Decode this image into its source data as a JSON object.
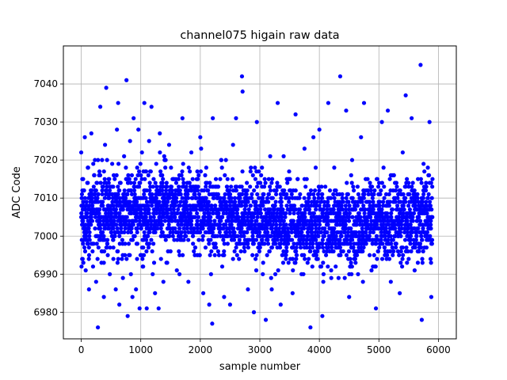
{
  "chart_data": {
    "type": "scatter",
    "title": "channel075 higain raw data",
    "xlabel": "sample number",
    "ylabel": "ADC Code",
    "xlim": [
      -300,
      6300
    ],
    "ylim": [
      6973,
      7050
    ],
    "x_ticks": [
      0,
      1000,
      2000,
      3000,
      4000,
      5000,
      6000
    ],
    "y_ticks": [
      6980,
      6990,
      7000,
      7010,
      7020,
      7030,
      7040
    ],
    "x_tick_labels": [
      "0",
      "1000",
      "2000",
      "3000",
      "4000",
      "5000",
      "6000"
    ],
    "y_tick_labels": [
      "6980",
      "6990",
      "7000",
      "7010",
      "7020",
      "7030",
      "7040"
    ],
    "grid": true,
    "legend": "none",
    "marker_color": "#0000ff",
    "series": [
      {
        "points": [
          [
            0,
            7022
          ],
          [
            5,
            6992
          ],
          [
            10,
            7008
          ],
          [
            18,
            7015
          ],
          [
            30,
            6998
          ],
          [
            45,
            7012
          ],
          [
            60,
            7026
          ],
          [
            75,
            6991
          ],
          [
            90,
            7005
          ],
          [
            110,
            7018
          ],
          [
            130,
            6986
          ],
          [
            150,
            7010
          ],
          [
            170,
            7027
          ],
          [
            190,
            6996
          ],
          [
            210,
            7013
          ],
          [
            230,
            7020
          ],
          [
            250,
            6988
          ],
          [
            270,
            7004
          ],
          [
            280,
            6976
          ],
          [
            300,
            7016
          ],
          [
            320,
            7034
          ],
          [
            340,
            6993
          ],
          [
            360,
            7009
          ],
          [
            380,
            6984
          ],
          [
            400,
            7024
          ],
          [
            420,
            7039
          ],
          [
            440,
            6999
          ],
          [
            460,
            7015
          ],
          [
            480,
            6990
          ],
          [
            500,
            7006
          ],
          [
            520,
            7019
          ],
          [
            540,
            6994
          ],
          [
            560,
            7011
          ],
          [
            580,
            6986
          ],
          [
            600,
            7028
          ],
          [
            620,
            7035
          ],
          [
            640,
            6982
          ],
          [
            660,
            7014
          ],
          [
            680,
            7003
          ],
          [
            700,
            6989
          ],
          [
            720,
            7021
          ],
          [
            740,
            7009
          ],
          [
            760,
            7041
          ],
          [
            780,
            6979
          ],
          [
            800,
            6995
          ],
          [
            820,
            7025
          ],
          [
            840,
            7012
          ],
          [
            860,
            6984
          ],
          [
            880,
            7031
          ],
          [
            900,
            7000
          ],
          [
            920,
            6986
          ],
          [
            940,
            7018
          ],
          [
            960,
            7028
          ],
          [
            980,
            6981
          ],
          [
            1000,
            7006
          ],
          [
            1020,
            7022
          ],
          [
            1040,
            6992
          ],
          [
            1060,
            7035
          ],
          [
            1080,
            7010
          ],
          [
            1100,
            6981
          ],
          [
            1120,
            6998
          ],
          [
            1140,
            7025
          ],
          [
            1160,
            7013
          ],
          [
            1180,
            7034
          ],
          [
            1200,
            6990
          ],
          [
            1220,
            7007
          ],
          [
            1240,
            6985
          ],
          [
            1260,
            7019
          ],
          [
            1280,
            7002
          ],
          [
            1300,
            6981
          ],
          [
            1320,
            7027
          ],
          [
            1340,
            6994
          ],
          [
            1360,
            7012
          ],
          [
            1380,
            6988
          ],
          [
            1400,
            7020
          ],
          [
            1450,
            7005
          ],
          [
            1500,
            6996
          ],
          [
            1550,
            7015
          ],
          [
            1600,
            7009
          ],
          [
            1650,
            6990
          ],
          [
            1700,
            7031
          ],
          [
            1750,
            7000
          ],
          [
            1800,
            6988
          ],
          [
            1850,
            7022
          ],
          [
            1900,
            7012
          ],
          [
            1950,
            6995
          ],
          [
            2000,
            7026
          ],
          [
            2050,
            6985
          ],
          [
            2100,
            7018
          ],
          [
            2150,
            6982
          ],
          [
            2180,
            6990
          ],
          [
            2200,
            6977
          ],
          [
            2210,
            7031
          ],
          [
            2250,
            7008
          ],
          [
            2300,
            6996
          ],
          [
            2350,
            7020
          ],
          [
            2400,
            6984
          ],
          [
            2450,
            7013
          ],
          [
            2500,
            6982
          ],
          [
            2550,
            7024
          ],
          [
            2600,
            7031
          ],
          [
            2650,
            6994
          ],
          [
            2700,
            7042
          ],
          [
            2710,
            7038
          ],
          [
            2750,
            7010
          ],
          [
            2800,
            6986
          ],
          [
            2850,
            7018
          ],
          [
            2900,
            6980
          ],
          [
            2950,
            7030
          ],
          [
            3000,
            7002
          ],
          [
            3050,
            6990
          ],
          [
            3100,
            6978
          ],
          [
            3150,
            7015
          ],
          [
            3200,
            6986
          ],
          [
            3250,
            7008
          ],
          [
            3300,
            7035
          ],
          [
            3350,
            6982
          ],
          [
            3400,
            7021
          ],
          [
            3450,
            6996
          ],
          [
            3500,
            7012
          ],
          [
            3550,
            6985
          ],
          [
            3600,
            7032
          ],
          [
            3650,
            7000
          ],
          [
            3700,
            6990
          ],
          [
            3750,
            7023
          ],
          [
            3800,
            7009
          ],
          [
            3850,
            6976
          ],
          [
            3900,
            7026
          ],
          [
            3950,
            6995
          ],
          [
            4000,
            7028
          ],
          [
            4050,
            6979
          ],
          [
            4100,
            7013
          ],
          [
            4150,
            7035
          ],
          [
            4200,
            6989
          ],
          [
            4250,
            7018
          ],
          [
            4300,
            7004
          ],
          [
            4350,
            7042
          ],
          [
            4400,
            6996
          ],
          [
            4450,
            7033
          ],
          [
            4500,
            6984
          ],
          [
            4550,
            7020
          ],
          [
            4600,
            7009
          ],
          [
            4650,
            6990
          ],
          [
            4700,
            7026
          ],
          [
            4750,
            7035
          ],
          [
            4800,
            6999
          ],
          [
            4850,
            7014
          ],
          [
            4900,
            6992
          ],
          [
            4950,
            6981
          ],
          [
            5000,
            7007
          ],
          [
            5050,
            7030
          ],
          [
            5100,
            6995
          ],
          [
            5150,
            7033
          ],
          [
            5200,
            6988
          ],
          [
            5250,
            7016
          ],
          [
            5300,
            7001
          ],
          [
            5350,
            6985
          ],
          [
            5400,
            7022
          ],
          [
            5450,
            7037
          ],
          [
            5500,
            6994
          ],
          [
            5550,
            7031
          ],
          [
            5600,
            6991
          ],
          [
            5650,
            7010
          ],
          [
            5700,
            7045
          ],
          [
            5720,
            6978
          ],
          [
            5750,
            7019
          ],
          [
            5800,
            7004
          ],
          [
            5850,
            7030
          ],
          [
            5880,
            6984
          ],
          [
            5900,
            7015
          ],
          [
            40,
            7003
          ],
          [
            140,
            7001
          ],
          [
            240,
            7010
          ],
          [
            340,
            7005
          ],
          [
            440,
            7007
          ],
          [
            540,
            7002
          ],
          [
            640,
            7009
          ],
          [
            740,
            7003
          ],
          [
            840,
            7006
          ],
          [
            940,
            7001
          ],
          [
            1040,
            7008
          ],
          [
            1140,
            7004
          ],
          [
            1240,
            7010
          ],
          [
            1340,
            7002
          ],
          [
            1440,
            7006
          ],
          [
            1540,
            7000
          ],
          [
            1640,
            7008
          ],
          [
            1740,
            7003
          ],
          [
            1840,
            7005
          ],
          [
            1940,
            7001
          ],
          [
            2040,
            7007
          ],
          [
            2140,
            7003
          ],
          [
            2240,
            7004
          ],
          [
            2340,
            7000
          ],
          [
            2440,
            7006
          ],
          [
            2540,
            7002
          ],
          [
            2640,
            7005
          ],
          [
            2740,
            7001
          ],
          [
            2840,
            7003
          ],
          [
            2940,
            6999
          ],
          [
            3040,
            7002
          ],
          [
            3140,
            6998
          ],
          [
            3240,
            7001
          ],
          [
            3340,
            6997
          ],
          [
            3440,
            7000
          ],
          [
            3540,
            6999
          ],
          [
            3640,
            7003
          ],
          [
            3740,
            7006
          ],
          [
            3840,
            7004
          ],
          [
            3940,
            7008
          ],
          [
            4040,
            7005
          ],
          [
            4140,
            7009
          ],
          [
            4240,
            7007
          ],
          [
            4340,
            7011
          ],
          [
            4440,
            7006
          ],
          [
            4540,
            7010
          ],
          [
            4640,
            7008
          ],
          [
            4740,
            7012
          ],
          [
            4840,
            7007
          ],
          [
            4940,
            7003
          ],
          [
            5040,
            7001
          ],
          [
            5140,
            7005
          ],
          [
            5240,
            6999
          ],
          [
            5340,
            7003
          ],
          [
            5440,
            7002
          ],
          [
            5540,
            7006
          ],
          [
            5640,
            7004
          ],
          [
            5740,
            7008
          ],
          [
            5840,
            7005
          ],
          [
            5890,
            7010
          ]
        ]
      }
    ]
  }
}
